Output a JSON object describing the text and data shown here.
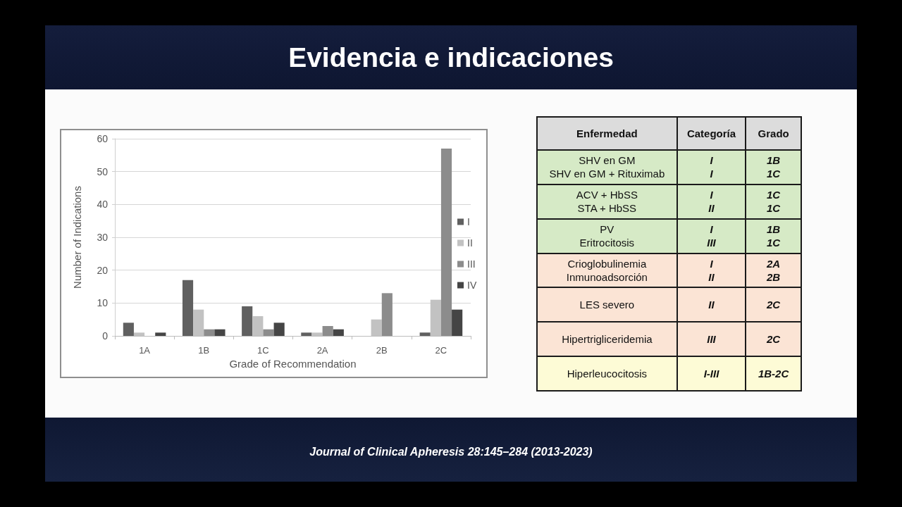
{
  "chart_data": [
    {
      "type": "bar",
      "title": "Evidencia e indicaciones",
      "xlabel": "Grade of Recommendation",
      "ylabel": "Number of Indications",
      "categories": [
        "1A",
        "1B",
        "1C",
        "2A",
        "2B",
        "2C"
      ],
      "series": [
        {
          "name": "I",
          "color": "#606060",
          "values": [
            4,
            17,
            9,
            1,
            0,
            1
          ]
        },
        {
          "name": "II",
          "color": "#c2c2c2",
          "values": [
            1,
            8,
            6,
            1,
            5,
            11
          ]
        },
        {
          "name": "III",
          "color": "#8c8c8c",
          "values": [
            0,
            2,
            2,
            3,
            13,
            57
          ]
        },
        {
          "name": "IV",
          "color": "#454545",
          "values": [
            1,
            2,
            4,
            2,
            0,
            8
          ]
        }
      ],
      "ylim": [
        0,
        60
      ],
      "yticks": [
        0,
        10,
        20,
        30,
        40,
        50,
        60
      ],
      "grid": "y",
      "legend": "right",
      "annotations": [
        "Journal of Clinical Apheresis 28:145–284 (2013-2023)"
      ]
    },
    {
      "type": "other",
      "annotations": [
        "Enfermedad",
        "Categoría",
        "Grado",
        "SHV en GM\nSHV en GM + Rituximab",
        "I\nI",
        "1B\n1C",
        "ACV + HbSS\nSTA + HbSS",
        "I\nII",
        "1C\n1C",
        "PV\nEritrocitosis",
        "I\nIII",
        "1B\n1C",
        "Crioglobulinemia\nInmunoadsorción",
        "I\nII",
        "2A\n2B",
        "LES severo",
        "II",
        "2C",
        "Hipertrigliceridemia",
        "III",
        "2C",
        "Hiperleucocitosis",
        "I-III",
        "1B-2C"
      ],
      "colors": [
        "#dcdcdc",
        "#d6eac6",
        "#d6eac6",
        "#d6eac6",
        "#fbe4d5",
        "#fbe4d5",
        "#fbe4d5",
        "#fdfbd6"
      ]
    }
  ]
}
